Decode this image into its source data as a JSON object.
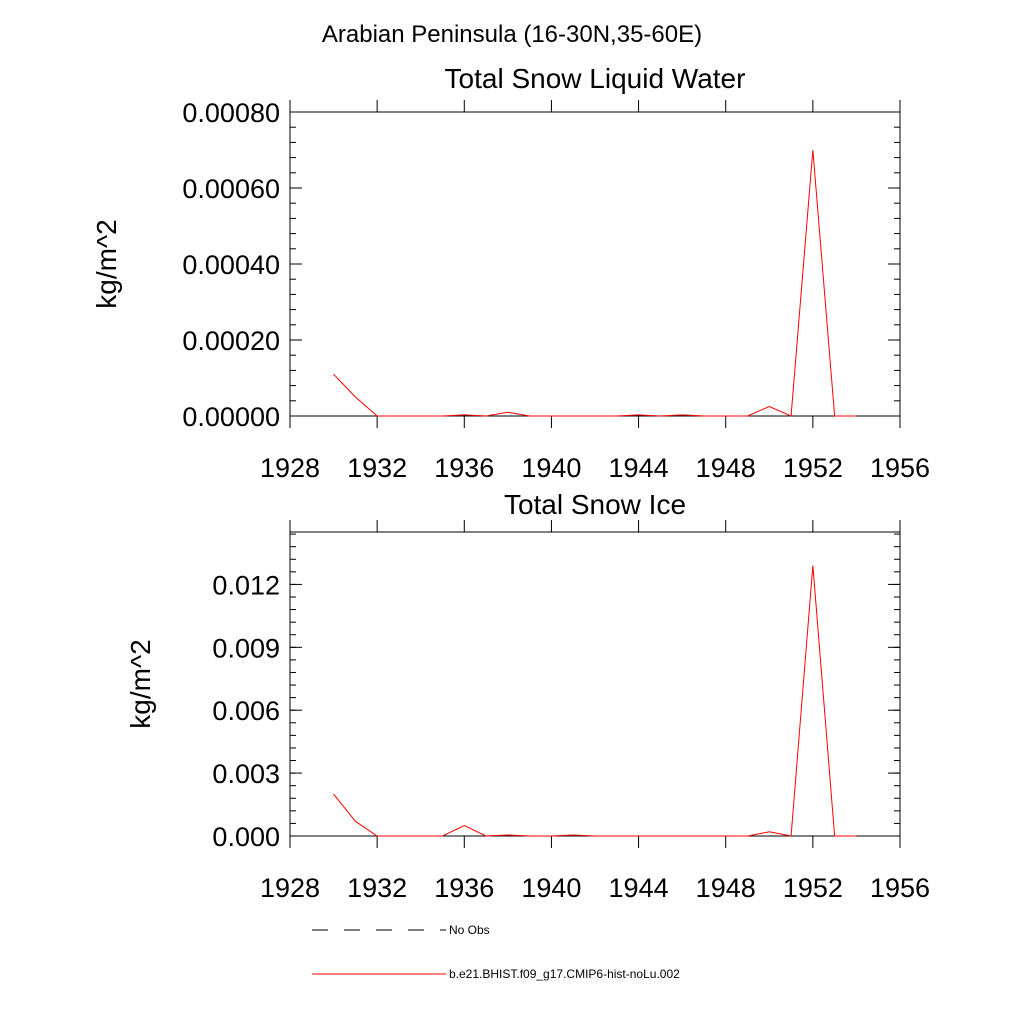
{
  "figure": {
    "title": "Arabian Peninsula (16-30N,35-60E)"
  },
  "legend": [
    {
      "label": "No Obs",
      "color": "#000000",
      "style": "dashed"
    },
    {
      "label": "b.e21.BHIST.f09_g17.CMIP6-hist-noLu.002",
      "color": "#ff0000",
      "style": "solid"
    }
  ],
  "chart_data": [
    {
      "type": "line",
      "title": "Total Snow Liquid Water",
      "xlabel": "",
      "ylabel": "kg/m^2",
      "xlim": [
        1928,
        1956
      ],
      "ylim": [
        0,
        0.0008
      ],
      "xticks": [
        1928,
        1932,
        1936,
        1940,
        1944,
        1948,
        1952,
        1956
      ],
      "xtick_labels": [
        "1928",
        "1932",
        "1936",
        "1940",
        "1944",
        "1948",
        "1952",
        "1956"
      ],
      "yticks": [
        0,
        0.0002,
        0.0004,
        0.0006,
        0.0008
      ],
      "ytick_labels": [
        "0.00000",
        "0.00020",
        "0.00040",
        "0.00060",
        "0.00080"
      ],
      "series": [
        {
          "name": "b.e21.BHIST.f09_g17.CMIP6-hist-noLu.002",
          "color": "#ff0000",
          "x": [
            1930,
            1931,
            1932,
            1933,
            1934,
            1935,
            1936,
            1937,
            1938,
            1939,
            1940,
            1941,
            1942,
            1943,
            1944,
            1945,
            1946,
            1947,
            1948,
            1949,
            1950,
            1951,
            1952,
            1953,
            1954
          ],
          "y": [
            0.00011,
            5e-05,
            0,
            0,
            0,
            0,
            3e-06,
            0,
            1e-05,
            0,
            0,
            0,
            0,
            0,
            3e-06,
            0,
            3e-06,
            0,
            0,
            0,
            2.5e-05,
            0,
            0.0007,
            0,
            0
          ]
        }
      ]
    },
    {
      "type": "line",
      "title": "Total Snow Ice",
      "xlabel": "",
      "ylabel": "kg/m^2",
      "xlim": [
        1928,
        1956
      ],
      "ylim": [
        0,
        0.0145
      ],
      "xticks": [
        1928,
        1932,
        1936,
        1940,
        1944,
        1948,
        1952,
        1956
      ],
      "xtick_labels": [
        "1928",
        "1932",
        "1936",
        "1940",
        "1944",
        "1948",
        "1952",
        "1956"
      ],
      "yticks": [
        0,
        0.003,
        0.006,
        0.009,
        0.012
      ],
      "ytick_labels": [
        "0.000",
        "0.003",
        "0.006",
        "0.009",
        "0.012"
      ],
      "series": [
        {
          "name": "b.e21.BHIST.f09_g17.CMIP6-hist-noLu.002",
          "color": "#ff0000",
          "x": [
            1930,
            1931,
            1932,
            1933,
            1934,
            1935,
            1936,
            1937,
            1938,
            1939,
            1940,
            1941,
            1942,
            1943,
            1944,
            1945,
            1946,
            1947,
            1948,
            1949,
            1950,
            1951,
            1952,
            1953,
            1954
          ],
          "y": [
            0.002,
            0.0007,
            0,
            0,
            0,
            0,
            0.0005,
            0,
            5e-05,
            0,
            0,
            5e-05,
            0,
            0,
            0,
            0,
            0,
            0,
            0,
            0,
            0.0002,
            0,
            0.0129,
            0,
            0
          ]
        }
      ]
    }
  ]
}
